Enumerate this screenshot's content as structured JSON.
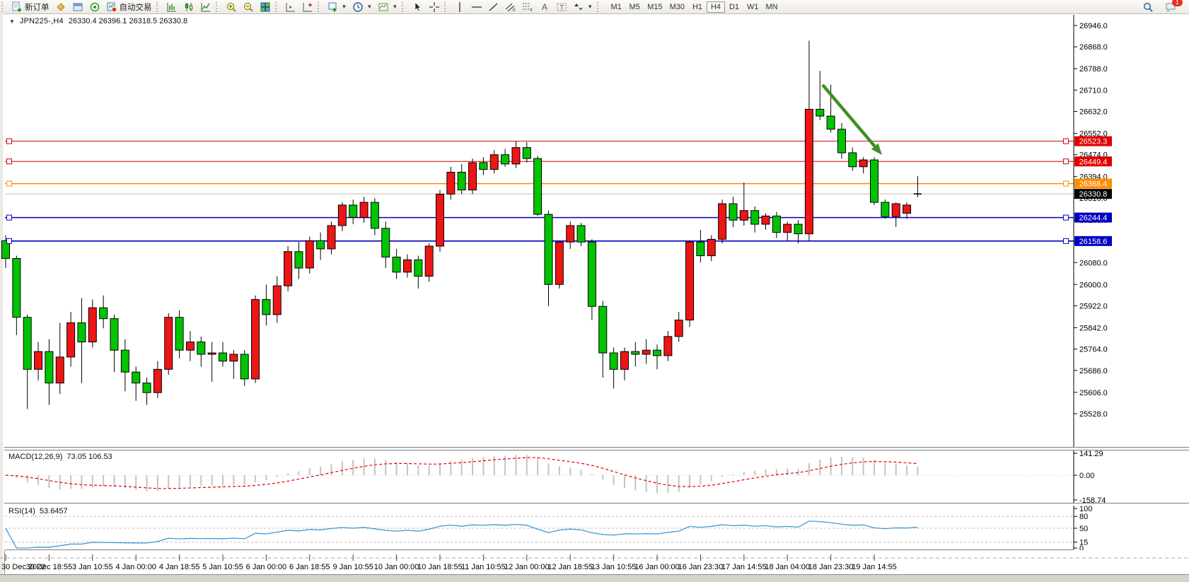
{
  "toolbar": {
    "new_order_label": "新订单",
    "autotrade_label": "自动交易",
    "timeframes": [
      "M1",
      "M5",
      "M15",
      "M30",
      "H1",
      "H4",
      "D1",
      "W1",
      "MN"
    ],
    "active_timeframe": "H4",
    "notification_badge": "1"
  },
  "chart_header": {
    "symbol_period": "JPN225-,H4",
    "ohlc_text": "26330.4 26396.1 26318.5 26330.8"
  },
  "indicators": {
    "macd_label": "MACD(12,26,9)",
    "macd_values": "73.05 106.53",
    "macd_axis_labels": [
      "141.29",
      "0.00",
      "-158.74"
    ],
    "rsi_label": "RSI(14)",
    "rsi_value": "53.6457",
    "rsi_axis_labels": [
      "100",
      "80",
      "50",
      "15",
      "0"
    ]
  },
  "chart_data": {
    "type": "candlestick",
    "symbol": "JPN225-",
    "timeframe": "H4",
    "title": "JPN225-,H4 26330.4 26396.1 26318.5 26330.8",
    "current_bar": {
      "open": 26330.4,
      "high": 26396.1,
      "low": 26318.5,
      "close": 26330.8
    },
    "color_convention": "chinese",
    "colors": {
      "up": "#ed1515",
      "down": "#00c400",
      "outline": "#000000",
      "macd_hist": "#c3c3c3",
      "macd_signal": "#e60000",
      "rsi_line": "#3d9ad8",
      "arrow": "#3f8f23",
      "current_line": "#bdbdbd"
    },
    "y_ticks": [
      26946,
      26868,
      26788,
      26710,
      26632,
      26552,
      26474,
      26394,
      26316,
      26236,
      26158,
      26080,
      26000,
      25922,
      25842,
      25764,
      25686,
      25606,
      25528
    ],
    "ylim": [
      25528,
      26946
    ],
    "x_labels": [
      "30 Dec 2022",
      "30 Dec 18:55",
      "3 Jan 10:55",
      "4 Jan 00:00",
      "4 Jan 18:55",
      "5 Jan 10:55",
      "6 Jan 00:00",
      "6 Jan 18:55",
      "9 Jan 10:55",
      "10 Jan 00:00",
      "10 Jan 18:55",
      "11 Jan 10:55",
      "12 Jan 00:00",
      "12 Jan 18:55",
      "13 Jan 10:55",
      "16 Jan 00:00",
      "16 Jan 23:30",
      "17 Jan 14:55",
      "18 Jan 04:00",
      "18 Jan 23:30",
      "19 Jan 14:55"
    ],
    "bars_per_label": 4,
    "horizontal_lines": [
      {
        "price": 26523.3,
        "label": "26523.3",
        "color": "#d40000",
        "badge": "#e00000",
        "width": 1
      },
      {
        "price": 26449.4,
        "label": "26449.4",
        "color": "#d40000",
        "badge": "#e00000",
        "width": 1
      },
      {
        "price": 26368.4,
        "label": "26368.4",
        "color": "#ff8d00",
        "badge": "#ff8d00",
        "width": 1.6
      },
      {
        "price": 26244.4,
        "label": "26244.4",
        "color": "#0000c4",
        "badge": "#0000c4",
        "width": 1.6
      },
      {
        "price": 26158.6,
        "label": "26158.6",
        "color": "#0000c4",
        "badge": "#0000c4",
        "width": 1.6
      }
    ],
    "current_price_line": {
      "price": 26330.8,
      "label": "26330.8",
      "badge": "#000000"
    },
    "arrow_annotation": {
      "from": [
        1163,
        120
      ],
      "to": [
        1247,
        219
      ],
      "width": 4.5
    },
    "macd": {
      "params": "12,26,9",
      "last_main": 73.05,
      "last_signal": 106.53,
      "scale_max": 141.29,
      "scale_min": -158.74,
      "axis_values": [
        141.29,
        0,
        -158.74
      ]
    },
    "rsi": {
      "period": 14,
      "last": 53.6457,
      "levels": [
        80,
        50,
        15
      ],
      "axis_values": [
        100,
        80,
        50,
        15,
        0
      ]
    },
    "candles": [
      [
        26160,
        26180,
        26060,
        26095
      ],
      [
        26095,
        26105,
        25815,
        25880
      ],
      [
        25880,
        25890,
        25545,
        25690
      ],
      [
        25690,
        25790,
        25650,
        25755
      ],
      [
        25755,
        25800,
        25560,
        25640
      ],
      [
        25640,
        25860,
        25600,
        25735
      ],
      [
        25735,
        25900,
        25700,
        25860
      ],
      [
        25860,
        25950,
        25640,
        25790
      ],
      [
        25790,
        25945,
        25770,
        25915
      ],
      [
        25915,
        25960,
        25840,
        25875
      ],
      [
        25875,
        25890,
        25680,
        25760
      ],
      [
        25760,
        25800,
        25610,
        25680
      ],
      [
        25680,
        25700,
        25575,
        25640
      ],
      [
        25640,
        25660,
        25560,
        25605
      ],
      [
        25605,
        25720,
        25585,
        25690
      ],
      [
        25690,
        25895,
        25670,
        25880
      ],
      [
        25880,
        25905,
        25730,
        25760
      ],
      [
        25760,
        25830,
        25720,
        25790
      ],
      [
        25790,
        25810,
        25700,
        25745
      ],
      [
        25745,
        25790,
        25645,
        25750
      ],
      [
        25750,
        25790,
        25700,
        25720
      ],
      [
        25720,
        25760,
        25655,
        25745
      ],
      [
        25745,
        25760,
        25630,
        25655
      ],
      [
        25655,
        25960,
        25640,
        25945
      ],
      [
        25945,
        26000,
        25850,
        25890
      ],
      [
        25890,
        26030,
        25860,
        25995
      ],
      [
        25995,
        26140,
        25975,
        26120
      ],
      [
        26120,
        26155,
        26020,
        26060
      ],
      [
        26060,
        26175,
        26040,
        26160
      ],
      [
        26160,
        26190,
        26090,
        26130
      ],
      [
        26130,
        26230,
        26110,
        26215
      ],
      [
        26215,
        26300,
        26195,
        26290
      ],
      [
        26290,
        26310,
        26220,
        26245
      ],
      [
        26245,
        26320,
        26225,
        26300
      ],
      [
        26300,
        26315,
        26180,
        26205
      ],
      [
        26205,
        26230,
        26060,
        26100
      ],
      [
        26100,
        26130,
        26020,
        26045
      ],
      [
        26045,
        26110,
        26025,
        26090
      ],
      [
        26090,
        26105,
        25985,
        26030
      ],
      [
        26030,
        26150,
        26010,
        26140
      ],
      [
        26140,
        26345,
        26120,
        26330
      ],
      [
        26330,
        26430,
        26310,
        26410
      ],
      [
        26410,
        26440,
        26330,
        26345
      ],
      [
        26345,
        26460,
        26330,
        26445
      ],
      [
        26445,
        26465,
        26400,
        26420
      ],
      [
        26420,
        26490,
        26405,
        26474
      ],
      [
        26474,
        26495,
        26430,
        26440
      ],
      [
        26440,
        26523,
        26425,
        26500
      ],
      [
        26500,
        26520,
        26445,
        26460
      ],
      [
        26460,
        26470,
        26250,
        26256
      ],
      [
        26256,
        26270,
        25920,
        26000
      ],
      [
        26000,
        26160,
        25985,
        26155
      ],
      [
        26155,
        26230,
        26130,
        26215
      ],
      [
        26215,
        26225,
        26140,
        26155
      ],
      [
        26155,
        26165,
        25870,
        25920
      ],
      [
        25920,
        25940,
        25660,
        25750
      ],
      [
        25750,
        25770,
        25620,
        25690
      ],
      [
        25690,
        25770,
        25650,
        25755
      ],
      [
        25755,
        25790,
        25700,
        25745
      ],
      [
        25745,
        25800,
        25710,
        25760
      ],
      [
        25760,
        25780,
        25690,
        25740
      ],
      [
        25740,
        25830,
        25720,
        25810
      ],
      [
        25810,
        25900,
        25790,
        25870
      ],
      [
        25870,
        26160,
        25845,
        26155
      ],
      [
        26155,
        26200,
        26080,
        26105
      ],
      [
        26105,
        26180,
        26085,
        26165
      ],
      [
        26165,
        26310,
        26150,
        26295
      ],
      [
        26295,
        26320,
        26210,
        26235
      ],
      [
        26235,
        26372,
        26215,
        26270
      ],
      [
        26270,
        26285,
        26190,
        26220
      ],
      [
        26220,
        26260,
        26200,
        26250
      ],
      [
        26250,
        26265,
        26170,
        26190
      ],
      [
        26190,
        26230,
        26160,
        26220
      ],
      [
        26220,
        26235,
        26150,
        26185
      ],
      [
        26185,
        26890,
        26160,
        26640
      ],
      [
        26640,
        26780,
        26600,
        26615
      ],
      [
        26615,
        26730,
        26555,
        26567
      ],
      [
        26567,
        26590,
        26460,
        26481
      ],
      [
        26481,
        26500,
        26415,
        26430
      ],
      [
        26430,
        26465,
        26405,
        26455
      ],
      [
        26455,
        26465,
        26290,
        26300
      ],
      [
        26300,
        26310,
        26240,
        26248
      ],
      [
        26248,
        26300,
        26210,
        26295
      ],
      [
        26260,
        26300,
        26240,
        26290
      ],
      [
        26330.4,
        26396.1,
        26318.5,
        26330.8
      ]
    ]
  }
}
